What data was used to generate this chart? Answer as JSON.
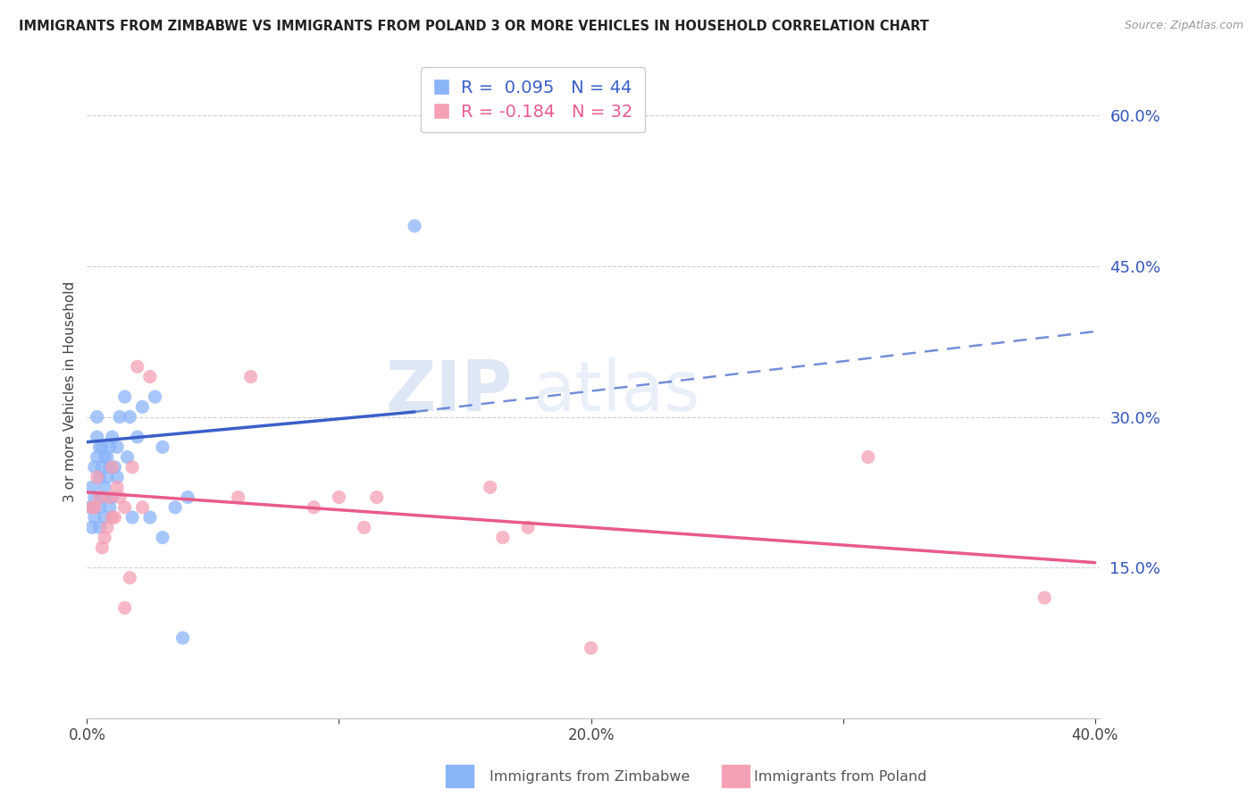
{
  "title": "IMMIGRANTS FROM ZIMBABWE VS IMMIGRANTS FROM POLAND 3 OR MORE VEHICLES IN HOUSEHOLD CORRELATION CHART",
  "source": "Source: ZipAtlas.com",
  "ylabel": "3 or more Vehicles in Household",
  "x_min": 0.0,
  "x_max": 0.4,
  "y_min": 0.0,
  "y_max": 0.65,
  "y_ticks": [
    0.0,
    0.15,
    0.3,
    0.45,
    0.6
  ],
  "y_tick_labels": [
    "",
    "15.0%",
    "30.0%",
    "45.0%",
    "60.0%"
  ],
  "x_ticks": [
    0.0,
    0.1,
    0.2,
    0.3,
    0.4
  ],
  "x_tick_labels": [
    "0.0%",
    "",
    "20.0%",
    "",
    "40.0%"
  ],
  "zimbabwe_color": "#8ab4f8",
  "poland_color": "#f4a0b5",
  "trend_zimbabwe_color": "#3a5fc8",
  "trend_poland_color": "#e85b8a",
  "R_zimbabwe": 0.095,
  "N_zimbabwe": 44,
  "R_poland": -0.184,
  "N_poland": 32,
  "watermark_zip": "ZIP",
  "watermark_atlas": "atlas",
  "zimbabwe_x": [
    0.001,
    0.002,
    0.002,
    0.003,
    0.003,
    0.003,
    0.004,
    0.004,
    0.004,
    0.005,
    0.005,
    0.005,
    0.005,
    0.006,
    0.006,
    0.006,
    0.007,
    0.007,
    0.007,
    0.008,
    0.008,
    0.009,
    0.009,
    0.009,
    0.01,
    0.01,
    0.011,
    0.012,
    0.012,
    0.013,
    0.015,
    0.016,
    0.017,
    0.018,
    0.02,
    0.022,
    0.025,
    0.027,
    0.03,
    0.03,
    0.035,
    0.038,
    0.04,
    0.13
  ],
  "zimbabwe_y": [
    0.21,
    0.19,
    0.23,
    0.2,
    0.22,
    0.25,
    0.26,
    0.28,
    0.3,
    0.19,
    0.21,
    0.24,
    0.27,
    0.22,
    0.25,
    0.27,
    0.2,
    0.23,
    0.26,
    0.24,
    0.26,
    0.21,
    0.25,
    0.27,
    0.22,
    0.28,
    0.25,
    0.24,
    0.27,
    0.3,
    0.32,
    0.26,
    0.3,
    0.2,
    0.28,
    0.31,
    0.2,
    0.32,
    0.27,
    0.18,
    0.21,
    0.08,
    0.22,
    0.49
  ],
  "poland_x": [
    0.002,
    0.003,
    0.004,
    0.005,
    0.006,
    0.007,
    0.008,
    0.009,
    0.01,
    0.01,
    0.011,
    0.012,
    0.013,
    0.015,
    0.015,
    0.017,
    0.018,
    0.02,
    0.022,
    0.025,
    0.06,
    0.065,
    0.09,
    0.1,
    0.11,
    0.115,
    0.16,
    0.165,
    0.175,
    0.2,
    0.31,
    0.38
  ],
  "poland_y": [
    0.21,
    0.21,
    0.24,
    0.22,
    0.17,
    0.18,
    0.19,
    0.22,
    0.2,
    0.25,
    0.2,
    0.23,
    0.22,
    0.21,
    0.11,
    0.14,
    0.25,
    0.35,
    0.21,
    0.34,
    0.22,
    0.34,
    0.21,
    0.22,
    0.19,
    0.22,
    0.23,
    0.18,
    0.19,
    0.07,
    0.26,
    0.12
  ],
  "zim_trend_x_solid_end": 0.13,
  "zim_trend_x_start": 0.0,
  "zim_trend_y_start": 0.275,
  "zim_trend_y_at_solid_end": 0.305,
  "zim_trend_y_at_dash_end": 0.385,
  "pol_trend_x_start": 0.0,
  "pol_trend_y_start": 0.225,
  "pol_trend_y_end": 0.155
}
